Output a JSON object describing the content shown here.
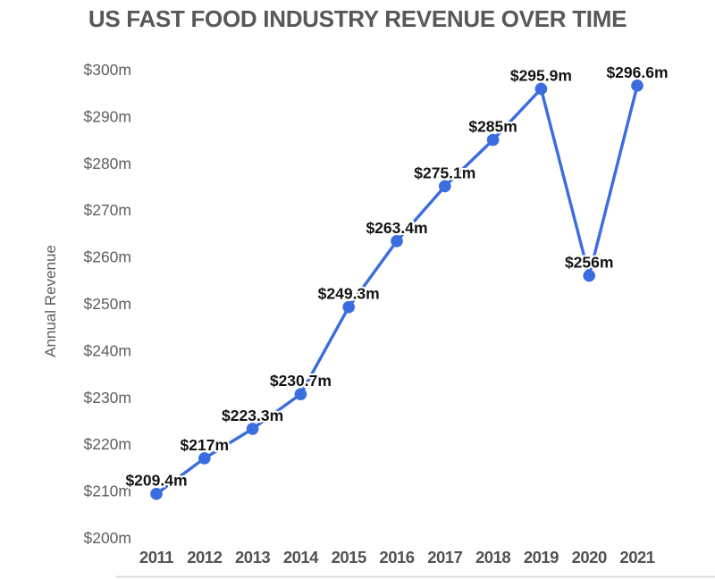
{
  "page": {
    "background": "#ffffff"
  },
  "chart_data": {
    "type": "line",
    "title": "US FAST FOOD INDUSTRY REVENUE OVER TIME",
    "xlabel": "",
    "ylabel": "Annual Revenue",
    "categories": [
      "2011",
      "2012",
      "2013",
      "2014",
      "2015",
      "2016",
      "2017",
      "2018",
      "2019",
      "2020",
      "2021"
    ],
    "values": [
      209.4,
      217,
      223.3,
      230.7,
      249.3,
      263.4,
      275.1,
      285,
      295.9,
      256,
      296.6
    ],
    "point_labels": [
      "$209.4m",
      "$217m",
      "$223.3m",
      "$230.7m",
      "$249.3m",
      "$263.4m",
      "$275.1m",
      "$285m",
      "$295.9m",
      "$256m",
      "$296.6m"
    ],
    "yticks": {
      "labels": [
        "$300m",
        "$290m",
        "$280m",
        "$270m",
        "$260m",
        "$250m",
        "$240m",
        "$230m",
        "$220m",
        "$210m",
        "$200m"
      ],
      "values": [
        300,
        290,
        280,
        270,
        260,
        250,
        240,
        230,
        220,
        210,
        200
      ]
    },
    "ylim": [
      200,
      300
    ],
    "grid": false,
    "legend": "none",
    "line_color": "#3b6ce0",
    "point_color": "#3b6ce0",
    "label_color": "#141414",
    "axis_text_color": "#5e5e5e",
    "year_text_color": "#525252",
    "title_color": "#57585a"
  }
}
